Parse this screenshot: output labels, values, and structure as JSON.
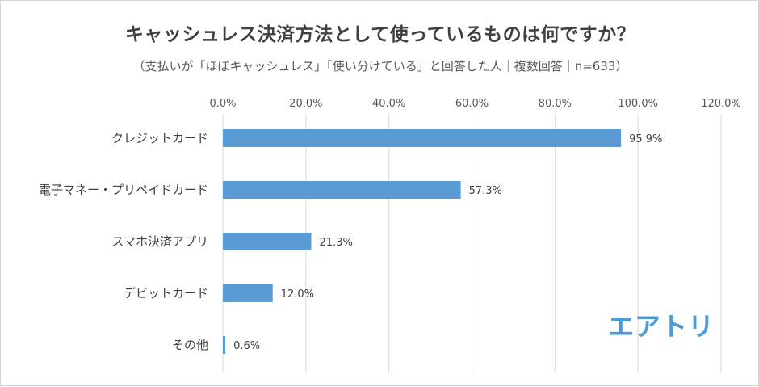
{
  "title": "キャッシュレス決済方法として使っているものは何ですか？",
  "subtitle": "（支払いが「ほぼキャッシュレス」「使い分けている」と回答した人｜複数回答｜n=633）",
  "brand": "エアトリ",
  "colors": {
    "bar": "#5b9bd5",
    "grid": "#d9d9d9",
    "text": "#404040"
  },
  "chart_data": {
    "type": "bar",
    "orientation": "horizontal",
    "categories": [
      "クレジットカード",
      "電子マネー・プリペイドカード",
      "スマホ決済アプリ",
      "デビットカード",
      "その他"
    ],
    "values": [
      95.9,
      57.3,
      21.3,
      12.0,
      0.6
    ],
    "value_labels": [
      "95.9%",
      "57.3%",
      "21.3%",
      "12.0%",
      "0.6%"
    ],
    "xlim": [
      0,
      120
    ],
    "xticks": [
      0,
      20,
      40,
      60,
      80,
      100,
      120
    ],
    "xtick_labels": [
      "0.0%",
      "20.0%",
      "40.0%",
      "60.0%",
      "80.0%",
      "100.0%",
      "120.0%"
    ],
    "axis_position": "top",
    "grid": true,
    "legend": "none"
  }
}
